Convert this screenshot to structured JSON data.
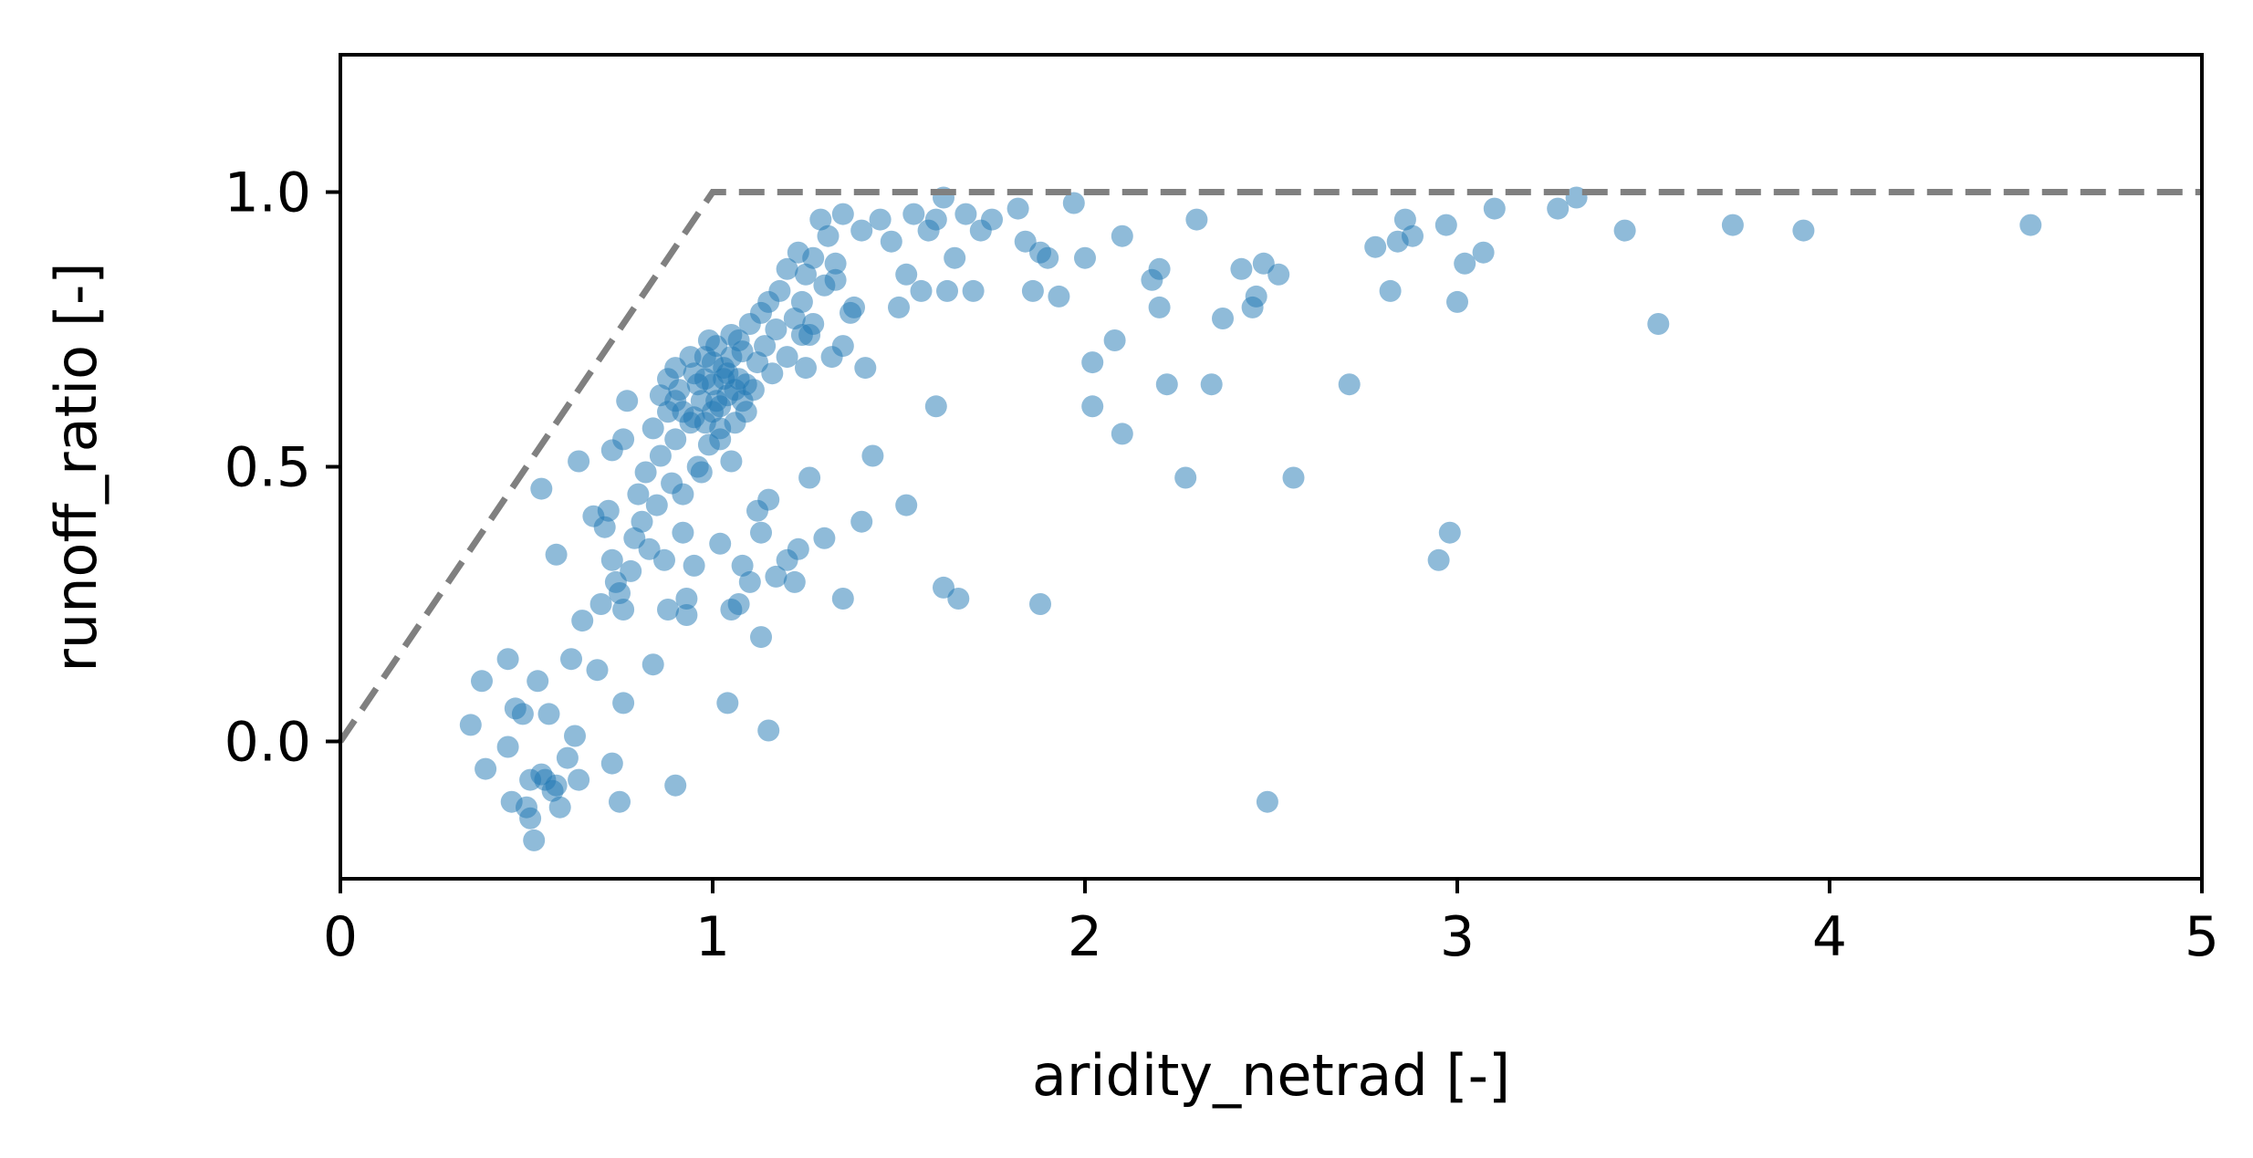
{
  "chart_data": {
    "type": "scatter",
    "xlabel": "aridity_netrad [-]",
    "ylabel": "runoff_ratio [-]",
    "xlim": [
      0,
      5
    ],
    "ylim": [
      -0.25,
      1.25
    ],
    "xticks": [
      0,
      1,
      2,
      3,
      4,
      5
    ],
    "xtick_labels": [
      "0",
      "1",
      "2",
      "3",
      "4",
      "5"
    ],
    "yticks": [
      0.0,
      0.5,
      1.0
    ],
    "ytick_labels": [
      "0.0",
      "0.5",
      "1.0"
    ],
    "grid": false,
    "colors": {
      "points": "#1f77b4",
      "limit_line": "#808080",
      "axes": "#000000"
    },
    "limit_line": {
      "style": "dashed",
      "points": [
        [
          0,
          0
        ],
        [
          1,
          1
        ],
        [
          5,
          1
        ]
      ]
    },
    "series": [
      {
        "values": [
          [
            0.35,
            0.03
          ],
          [
            0.38,
            0.11
          ],
          [
            0.39,
            -0.05
          ],
          [
            0.45,
            0.15
          ],
          [
            0.45,
            -0.01
          ],
          [
            0.46,
            -0.11
          ],
          [
            0.47,
            0.06
          ],
          [
            0.49,
            0.05
          ],
          [
            0.5,
            -0.12
          ],
          [
            0.51,
            -0.14
          ],
          [
            0.51,
            -0.07
          ],
          [
            0.52,
            -0.18
          ],
          [
            0.53,
            0.11
          ],
          [
            0.54,
            -0.06
          ],
          [
            0.55,
            -0.07
          ],
          [
            0.56,
            0.05
          ],
          [
            0.57,
            -0.09
          ],
          [
            0.58,
            -0.08
          ],
          [
            0.59,
            -0.12
          ],
          [
            0.61,
            -0.03
          ],
          [
            0.62,
            0.15
          ],
          [
            0.63,
            0.01
          ],
          [
            0.64,
            -0.07
          ],
          [
            0.69,
            0.13
          ],
          [
            0.73,
            -0.04
          ],
          [
            0.75,
            -0.11
          ],
          [
            0.76,
            0.07
          ],
          [
            0.9,
            -0.08
          ],
          [
            0.84,
            0.14
          ],
          [
            0.54,
            0.46
          ],
          [
            0.58,
            0.34
          ],
          [
            0.64,
            0.51
          ],
          [
            0.65,
            0.22
          ],
          [
            0.68,
            0.41
          ],
          [
            0.7,
            0.25
          ],
          [
            0.71,
            0.39
          ],
          [
            0.72,
            0.42
          ],
          [
            0.73,
            0.33
          ],
          [
            0.73,
            0.53
          ],
          [
            0.74,
            0.29
          ],
          [
            0.75,
            0.27
          ],
          [
            0.76,
            0.55
          ],
          [
            0.77,
            0.62
          ],
          [
            0.76,
            0.24
          ],
          [
            0.78,
            0.31
          ],
          [
            0.79,
            0.37
          ],
          [
            0.8,
            0.45
          ],
          [
            0.81,
            0.4
          ],
          [
            0.82,
            0.49
          ],
          [
            0.83,
            0.35
          ],
          [
            0.84,
            0.57
          ],
          [
            0.85,
            0.43
          ],
          [
            0.86,
            0.52
          ],
          [
            0.87,
            0.33
          ],
          [
            0.88,
            0.6
          ],
          [
            0.89,
            0.47
          ],
          [
            0.9,
            0.55
          ],
          [
            0.91,
            0.64
          ],
          [
            0.92,
            0.45
          ],
          [
            0.92,
            0.38
          ],
          [
            0.93,
            0.26
          ],
          [
            0.93,
            0.23
          ],
          [
            0.94,
            0.58
          ],
          [
            0.95,
            0.67
          ],
          [
            0.96,
            0.5
          ],
          [
            0.97,
            0.62
          ],
          [
            0.98,
            0.7
          ],
          [
            0.99,
            0.54
          ],
          [
            1.0,
            0.6
          ],
          [
            1.0,
            0.65
          ],
          [
            1.01,
            0.72
          ],
          [
            1.02,
            0.57
          ],
          [
            1.03,
            0.68
          ],
          [
            1.04,
            0.63
          ],
          [
            1.05,
            0.74
          ],
          [
            1.06,
            0.58
          ],
          [
            1.07,
            0.66
          ],
          [
            1.08,
            0.71
          ],
          [
            1.09,
            0.6
          ],
          [
            1.1,
            0.76
          ],
          [
            1.11,
            0.64
          ],
          [
            1.12,
            0.69
          ],
          [
            1.13,
            0.78
          ],
          [
            1.14,
            0.72
          ],
          [
            1.15,
            0.8
          ],
          [
            1.16,
            0.67
          ],
          [
            1.17,
            0.75
          ],
          [
            1.18,
            0.82
          ],
          [
            1.2,
            0.7
          ],
          [
            1.22,
            0.77
          ],
          [
            1.24,
            0.74
          ],
          [
            1.25,
            0.68
          ],
          [
            0.9,
            0.62
          ],
          [
            0.95,
            0.59
          ],
          [
            0.98,
            0.66
          ],
          [
            1.0,
            0.69
          ],
          [
            1.02,
            0.61
          ],
          [
            1.03,
            0.66
          ],
          [
            1.05,
            0.7
          ],
          [
            1.06,
            0.64
          ],
          [
            1.08,
            0.62
          ],
          [
            0.88,
            0.66
          ],
          [
            0.92,
            0.6
          ],
          [
            0.94,
            0.7
          ],
          [
            0.96,
            0.65
          ],
          [
            0.98,
            0.58
          ],
          [
            1.01,
            0.62
          ],
          [
            1.04,
            0.67
          ],
          [
            1.07,
            0.73
          ],
          [
            1.09,
            0.65
          ],
          [
            0.86,
            0.63
          ],
          [
            0.9,
            0.68
          ],
          [
            0.99,
            0.73
          ],
          [
            1.02,
            0.55
          ],
          [
            1.05,
            0.51
          ],
          [
            0.97,
            0.49
          ],
          [
            1.12,
            0.42
          ],
          [
            1.13,
            0.38
          ],
          [
            1.15,
            0.44
          ],
          [
            1.17,
            0.3
          ],
          [
            1.2,
            0.33
          ],
          [
            1.22,
            0.29
          ],
          [
            1.23,
            0.35
          ],
          [
            1.26,
            0.48
          ],
          [
            1.3,
            0.37
          ],
          [
            1.35,
            0.26
          ],
          [
            1.4,
            0.4
          ],
          [
            1.43,
            0.52
          ],
          [
            1.52,
            0.43
          ],
          [
            1.62,
            0.28
          ],
          [
            1.66,
            0.26
          ],
          [
            1.88,
            0.25
          ],
          [
            1.6,
            0.61
          ],
          [
            1.05,
            0.24
          ],
          [
            1.07,
            0.25
          ],
          [
            1.1,
            0.29
          ],
          [
            1.13,
            0.19
          ],
          [
            1.04,
            0.07
          ],
          [
            1.15,
            0.02
          ],
          [
            1.08,
            0.32
          ],
          [
            1.02,
            0.36
          ],
          [
            0.95,
            0.32
          ],
          [
            0.88,
            0.24
          ],
          [
            1.2,
            0.86
          ],
          [
            1.23,
            0.89
          ],
          [
            1.25,
            0.85
          ],
          [
            1.27,
            0.88
          ],
          [
            1.29,
            0.95
          ],
          [
            1.31,
            0.92
          ],
          [
            1.33,
            0.84
          ],
          [
            1.35,
            0.96
          ],
          [
            1.38,
            0.79
          ],
          [
            1.4,
            0.93
          ],
          [
            1.45,
            0.95
          ],
          [
            1.48,
            0.91
          ],
          [
            1.5,
            0.79
          ],
          [
            1.52,
            0.85
          ],
          [
            1.54,
            0.96
          ],
          [
            1.56,
            0.82
          ],
          [
            1.58,
            0.93
          ],
          [
            1.6,
            0.95
          ],
          [
            1.62,
            0.99
          ],
          [
            1.63,
            0.82
          ],
          [
            1.65,
            0.88
          ],
          [
            1.68,
            0.96
          ],
          [
            1.7,
            0.82
          ],
          [
            1.72,
            0.93
          ],
          [
            1.75,
            0.95
          ],
          [
            1.82,
            0.97
          ],
          [
            1.84,
            0.91
          ],
          [
            1.86,
            0.82
          ],
          [
            1.88,
            0.89
          ],
          [
            1.9,
            0.88
          ],
          [
            1.93,
            0.81
          ],
          [
            1.97,
            0.98
          ],
          [
            2.0,
            0.88
          ],
          [
            1.27,
            0.76
          ],
          [
            1.3,
            0.83
          ],
          [
            1.32,
            0.7
          ],
          [
            1.35,
            0.72
          ],
          [
            1.37,
            0.78
          ],
          [
            1.26,
            0.74
          ],
          [
            1.24,
            0.8
          ],
          [
            1.33,
            0.87
          ],
          [
            1.41,
            0.68
          ],
          [
            2.02,
            0.69
          ],
          [
            2.02,
            0.61
          ],
          [
            2.08,
            0.73
          ],
          [
            2.1,
            0.92
          ],
          [
            2.1,
            0.56
          ],
          [
            2.18,
            0.84
          ],
          [
            2.2,
            0.86
          ],
          [
            2.2,
            0.79
          ],
          [
            2.22,
            0.65
          ],
          [
            2.27,
            0.48
          ],
          [
            2.3,
            0.95
          ],
          [
            2.34,
            0.65
          ],
          [
            2.37,
            0.77
          ],
          [
            2.42,
            0.86
          ],
          [
            2.45,
            0.79
          ],
          [
            2.46,
            0.81
          ],
          [
            2.48,
            0.87
          ],
          [
            2.52,
            0.85
          ],
          [
            2.56,
            0.48
          ],
          [
            2.49,
            -0.11
          ],
          [
            2.71,
            0.65
          ],
          [
            2.78,
            0.9
          ],
          [
            2.82,
            0.82
          ],
          [
            2.84,
            0.91
          ],
          [
            2.86,
            0.95
          ],
          [
            2.88,
            0.92
          ],
          [
            2.95,
            0.33
          ],
          [
            2.98,
            0.38
          ],
          [
            2.97,
            0.94
          ],
          [
            3.0,
            0.8
          ],
          [
            3.02,
            0.87
          ],
          [
            3.07,
            0.89
          ],
          [
            3.1,
            0.97
          ],
          [
            3.27,
            0.97
          ],
          [
            3.32,
            0.99
          ],
          [
            3.45,
            0.93
          ],
          [
            3.54,
            0.76
          ],
          [
            3.74,
            0.94
          ],
          [
            3.93,
            0.93
          ],
          [
            4.54,
            0.94
          ]
        ]
      }
    ]
  }
}
